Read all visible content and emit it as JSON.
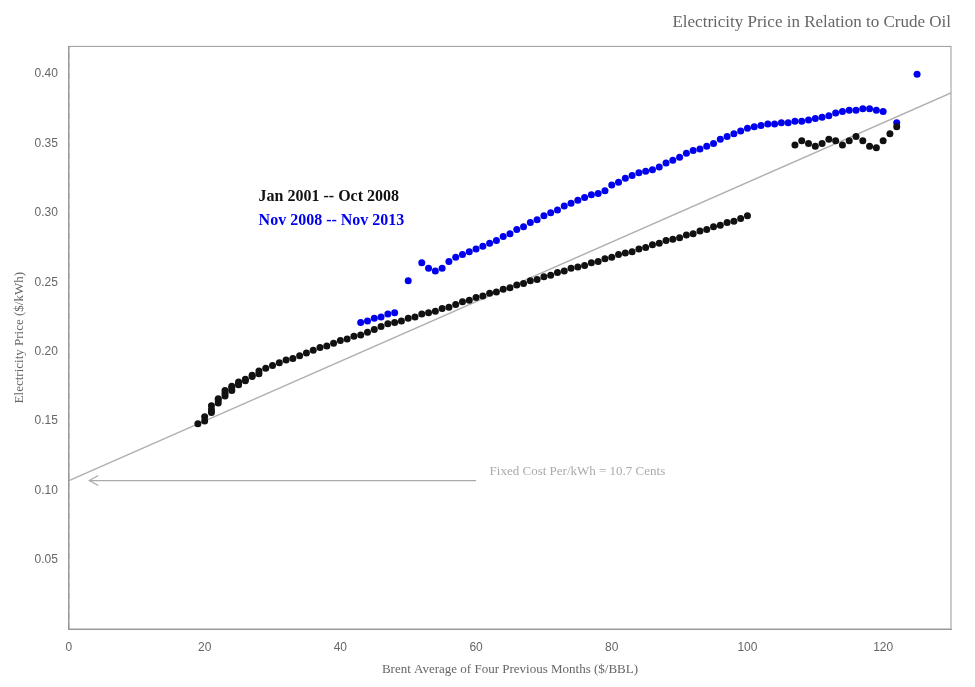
{
  "chart_data": {
    "type": "scatter",
    "title": "Electricity Price in Relation to Crude Oil",
    "xlabel": "Brent Average of Four Previous Months ($/BBL)",
    "ylabel": "Electricity Price ($/kWh)",
    "xlim": [
      0,
      130
    ],
    "xticks": [
      0,
      20,
      40,
      60,
      80,
      100,
      120
    ],
    "ylim": [
      0,
      0.42
    ],
    "yticks": [
      0.05,
      {
        "value": 0.1,
        "label": "0.10"
      },
      0.15,
      {
        "value": 0.2,
        "label": "0.20"
      },
      0.25,
      {
        "value": 0.3,
        "label": "0.30"
      },
      0.35,
      {
        "value": 0.4,
        "label": "0.40"
      }
    ],
    "grid": false,
    "legend": "upper left",
    "series": [
      {
        "name": "Jan 2001 -- Oct 2008",
        "color": "#111111",
        "x": [
          19,
          20,
          20,
          21,
          21,
          21,
          22,
          22,
          22,
          23,
          23,
          23,
          24,
          24,
          24,
          25,
          25,
          25,
          26,
          26,
          27,
          27,
          28,
          28,
          29,
          30,
          31,
          32,
          33,
          34,
          35,
          36,
          37,
          38,
          39,
          40,
          41,
          42,
          43,
          44,
          45,
          46,
          47,
          48,
          49,
          50,
          51,
          52,
          53,
          54,
          55,
          56,
          57,
          58,
          59,
          60,
          61,
          62,
          63,
          64,
          65,
          66,
          67,
          68,
          69,
          70,
          71,
          72,
          73,
          74,
          75,
          76,
          77,
          78,
          79,
          80,
          81,
          82,
          83,
          84,
          85,
          86,
          87,
          88,
          89,
          90,
          91,
          92,
          93,
          94,
          95,
          96,
          97,
          98,
          99,
          100,
          107,
          108,
          109,
          110,
          111,
          112,
          113,
          114,
          115,
          116,
          117,
          118,
          119,
          120,
          121,
          122
        ],
        "values": [
          0.148,
          0.15,
          0.153,
          0.156,
          0.158,
          0.161,
          0.163,
          0.165,
          0.166,
          0.168,
          0.17,
          0.172,
          0.172,
          0.174,
          0.175,
          0.176,
          0.177,
          0.178,
          0.179,
          0.18,
          0.182,
          0.183,
          0.184,
          0.186,
          0.188,
          0.19,
          0.192,
          0.194,
          0.195,
          0.197,
          0.199,
          0.201,
          0.203,
          0.204,
          0.206,
          0.208,
          0.209,
          0.211,
          0.212,
          0.214,
          0.216,
          0.218,
          0.22,
          0.221,
          0.222,
          0.224,
          0.225,
          0.227,
          0.228,
          0.229,
          0.231,
          0.232,
          0.234,
          0.236,
          0.237,
          0.239,
          0.24,
          0.242,
          0.243,
          0.245,
          0.246,
          0.248,
          0.249,
          0.251,
          0.252,
          0.254,
          0.255,
          0.257,
          0.258,
          0.26,
          0.261,
          0.262,
          0.264,
          0.265,
          0.267,
          0.268,
          0.27,
          0.271,
          0.272,
          0.274,
          0.275,
          0.277,
          0.278,
          0.28,
          0.281,
          0.282,
          0.284,
          0.285,
          0.287,
          0.288,
          0.29,
          0.291,
          0.293,
          0.294,
          0.296,
          0.298,
          0.349,
          0.352,
          0.35,
          0.348,
          0.35,
          0.353,
          0.352,
          0.349,
          0.352,
          0.355,
          0.352,
          0.348,
          0.347,
          0.352,
          0.357,
          0.362
        ]
      },
      {
        "name": "Nov 2008 -- Nov 2013",
        "color": "#0000ee",
        "x": [
          43,
          44,
          45,
          46,
          47,
          48,
          50,
          52,
          53,
          54,
          55,
          56,
          57,
          58,
          59,
          60,
          61,
          62,
          63,
          64,
          65,
          66,
          67,
          68,
          69,
          70,
          71,
          72,
          73,
          74,
          75,
          76,
          77,
          78,
          79,
          80,
          81,
          82,
          83,
          84,
          85,
          86,
          87,
          88,
          89,
          90,
          91,
          92,
          93,
          94,
          95,
          96,
          97,
          98,
          99,
          100,
          101,
          102,
          103,
          104,
          105,
          106,
          107,
          108,
          109,
          110,
          111,
          112,
          113,
          114,
          115,
          116,
          117,
          118,
          119,
          120,
          122,
          125
        ],
        "values": [
          0.221,
          0.222,
          0.224,
          0.225,
          0.227,
          0.228,
          0.251,
          0.264,
          0.26,
          0.258,
          0.26,
          0.265,
          0.268,
          0.27,
          0.272,
          0.274,
          0.276,
          0.278,
          0.28,
          0.283,
          0.285,
          0.288,
          0.29,
          0.293,
          0.295,
          0.298,
          0.3,
          0.302,
          0.305,
          0.307,
          0.309,
          0.311,
          0.313,
          0.314,
          0.316,
          0.32,
          0.322,
          0.325,
          0.327,
          0.329,
          0.33,
          0.331,
          0.333,
          0.336,
          0.338,
          0.34,
          0.343,
          0.345,
          0.346,
          0.348,
          0.35,
          0.353,
          0.355,
          0.357,
          0.359,
          0.361,
          0.362,
          0.363,
          0.364,
          0.364,
          0.365,
          0.365,
          0.366,
          0.366,
          0.367,
          0.368,
          0.369,
          0.37,
          0.372,
          0.373,
          0.374,
          0.374,
          0.375,
          0.375,
          0.374,
          0.373,
          0.365,
          0.4
        ]
      },
      {
        "type": "line",
        "color": "#b0b0b0",
        "x": [
          0,
          130
        ],
        "values": [
          0.107,
          0.3865
        ]
      },
      {
        "type": "line",
        "color": "#aaaaaa",
        "line_style": "dashed",
        "x": [
          0,
          0
        ],
        "values": [
          0,
          0.42
        ]
      }
    ],
    "annotations": [
      {
        "text": "Fixed Cost Per/kWh = 10.7 Cents",
        "x": 62,
        "y": 0.107,
        "arrow_from": 60,
        "arrow_to": 3,
        "color": "#aaaaaa"
      }
    ]
  }
}
